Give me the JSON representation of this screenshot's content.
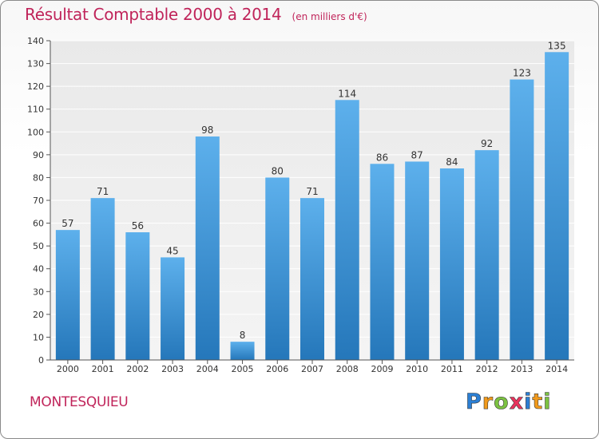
{
  "chart_data": {
    "type": "bar",
    "title": "Résultat Comptable 2000 à 2014",
    "subtitle": "(en milliers d'€)",
    "categories": [
      "2000",
      "2001",
      "2002",
      "2003",
      "2004",
      "2005",
      "2006",
      "2007",
      "2008",
      "2009",
      "2010",
      "2011",
      "2012",
      "2013",
      "2014"
    ],
    "values": [
      57,
      71,
      56,
      45,
      98,
      8,
      80,
      71,
      114,
      86,
      87,
      84,
      92,
      123,
      135
    ],
    "ylim": [
      0,
      140
    ],
    "yticks": [
      "0",
      "10",
      "20",
      "30",
      "40",
      "50",
      "60",
      "70",
      "80",
      "90",
      "100",
      "110",
      "120",
      "130",
      "140"
    ],
    "xlabel": "",
    "ylabel": "",
    "grid": true,
    "bar_color": "#3d95d8"
  },
  "footer": {
    "commune": "MONTESQUIEU",
    "logo": {
      "letters": [
        "P",
        "r",
        "o",
        "x",
        "i",
        "t",
        "i"
      ],
      "colors": [
        "#2b7fd4",
        "#f29a1b",
        "#7cc242",
        "#e8335c",
        "#2b7fd4",
        "#f29a1b",
        "#7cc242"
      ]
    }
  }
}
